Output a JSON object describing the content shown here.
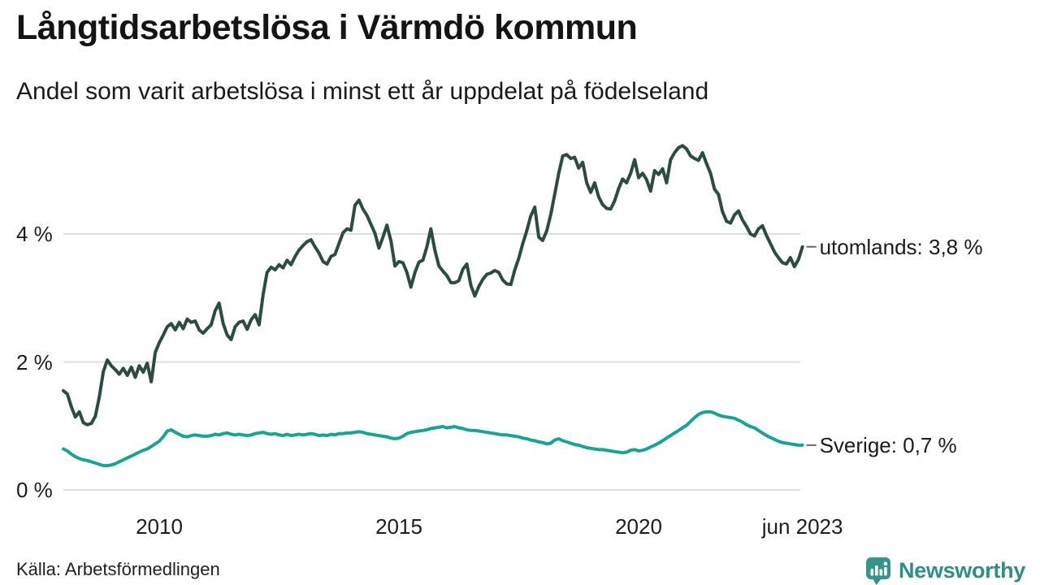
{
  "header": {
    "title": "Långtidsarbetslösa i Värmdö kommun",
    "subtitle": "Andel som varit arbetslösa i minst ett år uppdelat på födelseland"
  },
  "source": {
    "label": "Källa: Arbetsförmedlingen"
  },
  "branding": {
    "name": "Newsworthy",
    "color": "#2f8e85"
  },
  "chart_data": {
    "type": "line",
    "title": "Långtidsarbetslösa i Värmdö kommun",
    "subtitle": "Andel som varit arbetslösa i minst ett år uppdelat på födelseland",
    "xlabel": "",
    "ylabel": "",
    "grid": "horizontal",
    "grid_color": "#dedede",
    "tick_dash_color": "#666666",
    "x_start": 2008.0,
    "x_step": 0.0833333,
    "x_end": 2023.417,
    "ylim": [
      0,
      5.6
    ],
    "y_ticks": [
      {
        "value": 0,
        "label": "0 %"
      },
      {
        "value": 2,
        "label": "2 %"
      },
      {
        "value": 4,
        "label": "4 %"
      }
    ],
    "x_ticks": [
      {
        "value": 2010,
        "label": "2010"
      },
      {
        "value": 2015,
        "label": "2015"
      },
      {
        "value": 2020,
        "label": "2020"
      },
      {
        "value": 2023.417,
        "label": "jun 2023"
      }
    ],
    "legend_position": "end-of-line",
    "series": [
      {
        "name": "utomlands",
        "label": "utomlands: 3,8 %",
        "end_value": "3,8 %",
        "color": "#2b4c40",
        "values": [
          1.55,
          1.5,
          1.3,
          1.14,
          1.22,
          1.05,
          1.02,
          1.04,
          1.15,
          1.45,
          1.85,
          2.03,
          1.94,
          1.88,
          1.81,
          1.9,
          1.79,
          1.92,
          1.76,
          1.94,
          1.84,
          1.98,
          1.69,
          2.15,
          2.3,
          2.42,
          2.55,
          2.6,
          2.5,
          2.62,
          2.52,
          2.67,
          2.62,
          2.64,
          2.5,
          2.45,
          2.52,
          2.58,
          2.8,
          2.92,
          2.6,
          2.42,
          2.35,
          2.55,
          2.62,
          2.64,
          2.51,
          2.66,
          2.74,
          2.58,
          3.05,
          3.4,
          3.48,
          3.44,
          3.52,
          3.47,
          3.59,
          3.52,
          3.65,
          3.75,
          3.82,
          3.88,
          3.91,
          3.8,
          3.7,
          3.57,
          3.53,
          3.65,
          3.68,
          3.85,
          4.02,
          4.08,
          4.06,
          4.45,
          4.53,
          4.39,
          4.29,
          4.15,
          4.01,
          3.78,
          3.95,
          4.14,
          3.89,
          3.5,
          3.57,
          3.55,
          3.4,
          3.17,
          3.4,
          3.56,
          3.59,
          3.8,
          4.08,
          3.75,
          3.5,
          3.42,
          3.35,
          3.24,
          3.24,
          3.27,
          3.45,
          3.53,
          3.2,
          3.03,
          3.18,
          3.29,
          3.37,
          3.39,
          3.43,
          3.4,
          3.28,
          3.22,
          3.21,
          3.44,
          3.62,
          3.85,
          4.05,
          4.28,
          4.42,
          3.95,
          3.9,
          4.05,
          4.3,
          4.62,
          4.95,
          5.22,
          5.24,
          5.18,
          5.2,
          5.03,
          5.12,
          4.8,
          4.65,
          4.8,
          4.58,
          4.46,
          4.4,
          4.39,
          4.52,
          4.71,
          4.86,
          4.8,
          4.95,
          5.16,
          4.88,
          4.95,
          4.85,
          4.67,
          4.99,
          4.93,
          5.02,
          4.8,
          5.16,
          5.27,
          5.35,
          5.38,
          5.33,
          5.22,
          5.18,
          5.15,
          5.27,
          5.1,
          4.95,
          4.7,
          4.62,
          4.35,
          4.2,
          4.17,
          4.3,
          4.36,
          4.22,
          4.12,
          4.0,
          3.97,
          4.08,
          4.13,
          3.98,
          3.85,
          3.72,
          3.63,
          3.55,
          3.53,
          3.63,
          3.49,
          3.6,
          3.8
        ]
      },
      {
        "name": "Sverige",
        "label": "Sverige: 0,7 %",
        "end_value": "0,7 %",
        "color": "#1aa294",
        "values": [
          0.64,
          0.61,
          0.56,
          0.52,
          0.49,
          0.47,
          0.46,
          0.44,
          0.42,
          0.4,
          0.38,
          0.38,
          0.39,
          0.41,
          0.44,
          0.47,
          0.5,
          0.53,
          0.56,
          0.59,
          0.62,
          0.64,
          0.68,
          0.72,
          0.76,
          0.83,
          0.92,
          0.94,
          0.9,
          0.87,
          0.84,
          0.83,
          0.85,
          0.86,
          0.85,
          0.84,
          0.84,
          0.85,
          0.87,
          0.86,
          0.88,
          0.89,
          0.87,
          0.86,
          0.87,
          0.86,
          0.85,
          0.86,
          0.88,
          0.89,
          0.9,
          0.88,
          0.87,
          0.88,
          0.86,
          0.85,
          0.87,
          0.85,
          0.86,
          0.87,
          0.86,
          0.87,
          0.88,
          0.87,
          0.85,
          0.86,
          0.85,
          0.87,
          0.86,
          0.88,
          0.88,
          0.89,
          0.89,
          0.9,
          0.91,
          0.9,
          0.88,
          0.87,
          0.86,
          0.85,
          0.84,
          0.83,
          0.81,
          0.8,
          0.81,
          0.84,
          0.88,
          0.9,
          0.91,
          0.92,
          0.93,
          0.94,
          0.96,
          0.97,
          0.98,
          0.99,
          0.97,
          0.98,
          0.99,
          0.97,
          0.96,
          0.94,
          0.93,
          0.93,
          0.92,
          0.91,
          0.9,
          0.89,
          0.88,
          0.87,
          0.86,
          0.86,
          0.85,
          0.84,
          0.83,
          0.81,
          0.8,
          0.78,
          0.77,
          0.75,
          0.74,
          0.72,
          0.73,
          0.78,
          0.8,
          0.77,
          0.75,
          0.73,
          0.71,
          0.7,
          0.68,
          0.66,
          0.65,
          0.64,
          0.63,
          0.63,
          0.62,
          0.61,
          0.6,
          0.59,
          0.58,
          0.59,
          0.62,
          0.63,
          0.61,
          0.62,
          0.64,
          0.67,
          0.7,
          0.73,
          0.77,
          0.81,
          0.85,
          0.89,
          0.93,
          0.97,
          1.01,
          1.07,
          1.13,
          1.18,
          1.21,
          1.22,
          1.22,
          1.2,
          1.17,
          1.15,
          1.14,
          1.13,
          1.12,
          1.09,
          1.06,
          1.02,
          0.99,
          0.97,
          0.93,
          0.89,
          0.85,
          0.82,
          0.79,
          0.76,
          0.74,
          0.73,
          0.72,
          0.71,
          0.7,
          0.7
        ]
      }
    ]
  }
}
